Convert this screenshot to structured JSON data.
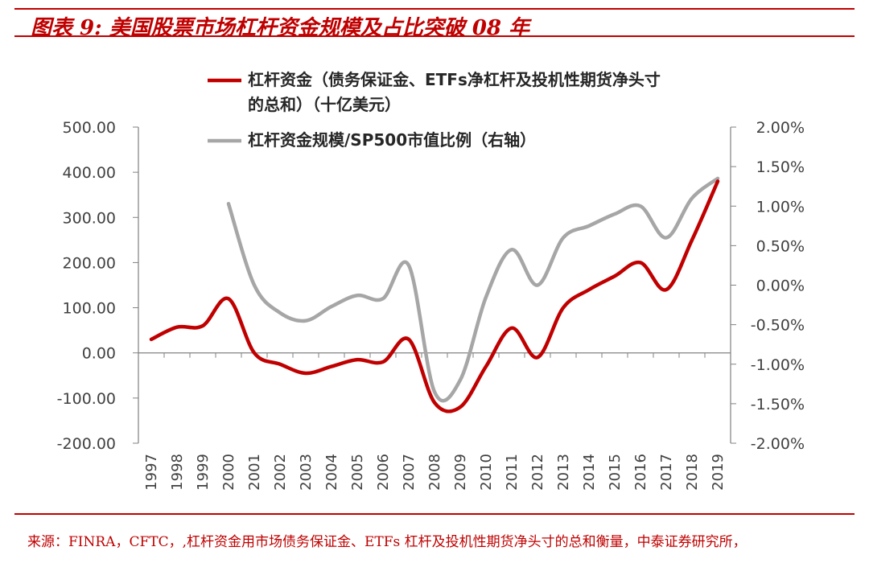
{
  "title": "图表 9:  美国股票市场杠杆资金规模及占比突破 08 年",
  "source": "来源：FINRA，CFTC，,杠杆资金用市场债务保证金、ETFs 杠杆及投机性期货净头寸的总和衡量，中泰证券研究所，",
  "colors": {
    "accent": "#c00000",
    "series_main": "#c00000",
    "series_ratio": "#a6a6a6",
    "axis": "#808080",
    "text": "#404040"
  },
  "chart_data": {
    "type": "line",
    "categories": [
      "1997",
      "1998",
      "1999",
      "2000",
      "2001",
      "2002",
      "2003",
      "2004",
      "2005",
      "2006",
      "2007",
      "2008",
      "2009",
      "2010",
      "2011",
      "2012",
      "2013",
      "2014",
      "2015",
      "2016",
      "2017",
      "2018",
      "2019"
    ],
    "series": [
      {
        "name": "杠杆资金（债务保证金、ETFs净杠杆及投机性期货净头寸的总和）（十亿美元）",
        "legend_lines": [
          "杠杆资金（债务保证金、ETFs净杠杆及投机性期货净头寸",
          "的总和）（十亿美元）"
        ],
        "axis": "left",
        "values": [
          30,
          57,
          60,
          120,
          0,
          -25,
          -45,
          -30,
          -15,
          -20,
          30,
          -110,
          -120,
          -30,
          55,
          -10,
          100,
          140,
          170,
          200,
          140,
          250,
          380
        ]
      },
      {
        "name": "杠杆资金规模/SP500市值比例（右轴）",
        "legend_lines": [
          "杠杆资金规模/SP500市值比例（右轴）"
        ],
        "axis": "right",
        "values": [
          null,
          null,
          null,
          1.03,
          0.0,
          -0.35,
          -0.45,
          -0.27,
          -0.13,
          -0.17,
          0.25,
          -1.35,
          -1.2,
          -0.15,
          0.45,
          0.0,
          0.6,
          0.75,
          0.9,
          1.0,
          0.6,
          1.1,
          1.35
        ]
      }
    ],
    "y_left": {
      "ylim": [
        -200,
        500
      ],
      "ticks": [
        "500.00",
        "400.00",
        "300.00",
        "200.00",
        "100.00",
        "0.00",
        "-100.00",
        "-200.00"
      ],
      "tick_values": [
        500,
        400,
        300,
        200,
        100,
        0,
        -100,
        -200
      ]
    },
    "y_right": {
      "ylim": [
        -2.0,
        2.0
      ],
      "ticks": [
        "2.00%",
        "1.50%",
        "1.00%",
        "0.50%",
        "0.00%",
        "-0.50%",
        "-1.00%",
        "-1.50%",
        "-2.00%"
      ],
      "tick_values": [
        2.0,
        1.5,
        1.0,
        0.5,
        0.0,
        -0.5,
        -1.0,
        -1.5,
        -2.0
      ]
    },
    "grid": false,
    "legend_position": "top"
  }
}
